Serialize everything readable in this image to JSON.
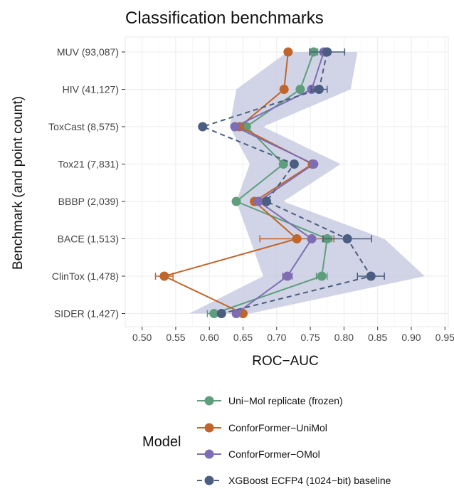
{
  "chart_data": {
    "type": "scatter",
    "title": "Classification benchmarks",
    "xlabel": "ROC−AUC",
    "ylabel": "Benchmark (and point count)",
    "xlim": [
      0.475,
      0.955
    ],
    "xticks": [
      "0.50",
      "0.55",
      "0.60",
      "0.65",
      "0.70",
      "0.75",
      "0.80",
      "0.85",
      "0.90",
      "0.95"
    ],
    "xtick_values": [
      0.5,
      0.55,
      0.6,
      0.65,
      0.7,
      0.75,
      0.8,
      0.85,
      0.9,
      0.95
    ],
    "categories": [
      "MUV (93,087)",
      "HIV (41,127)",
      "ToxCast (8,575)",
      "Tox21 (7,831)",
      "BBBP (2,039)",
      "BACE (1,513)",
      "ClinTox (1,478)",
      "SIDER (1,427)"
    ],
    "band": {
      "color": "#c9cde2",
      "min": [
        0.716,
        0.64,
        0.63,
        0.66,
        0.64,
        0.66,
        0.68,
        0.57
      ],
      "max": [
        0.82,
        0.81,
        0.68,
        0.795,
        0.71,
        0.86,
        0.92,
        0.66
      ]
    },
    "grid": true,
    "legend": {
      "title": "Model",
      "placement": "bottom"
    },
    "series": [
      {
        "name": "Uni−Mol replicate (frozen)",
        "color": "#5e9e7d",
        "dashed": false,
        "values": [
          0.755,
          0.735,
          0.655,
          0.71,
          0.64,
          0.775,
          0.767,
          0.607
        ],
        "err": [
          0.006,
          0,
          0,
          0,
          0,
          0.007,
          0.008,
          0.01
        ]
      },
      {
        "name": "ConforFormer−UniMol",
        "color": "#c0652b",
        "dashed": false,
        "values": [
          0.717,
          0.711,
          0.645,
          0.753,
          0.667,
          0.73,
          0.533,
          0.65
        ],
        "err": [
          0,
          0,
          0,
          0,
          0,
          0.055,
          0.013,
          0
        ]
      },
      {
        "name": "ConforFormer−OMol",
        "color": "#7e6db3",
        "dashed": false,
        "values": [
          0.77,
          0.752,
          0.638,
          0.755,
          0.673,
          0.752,
          0.716,
          0.64
        ],
        "err": [
          0,
          0,
          0,
          0,
          0,
          0,
          0.007,
          0
        ]
      },
      {
        "name": "XGBoost ECFP4 (1024−bit) baseline",
        "color": "#4b5d80",
        "dashed": true,
        "values": [
          0.775,
          0.763,
          0.59,
          0.726,
          0.685,
          0.805,
          0.84,
          0.618
        ],
        "err": [
          0.026,
          0.012,
          0,
          0,
          0,
          0.036,
          0.02,
          0
        ]
      }
    ]
  }
}
